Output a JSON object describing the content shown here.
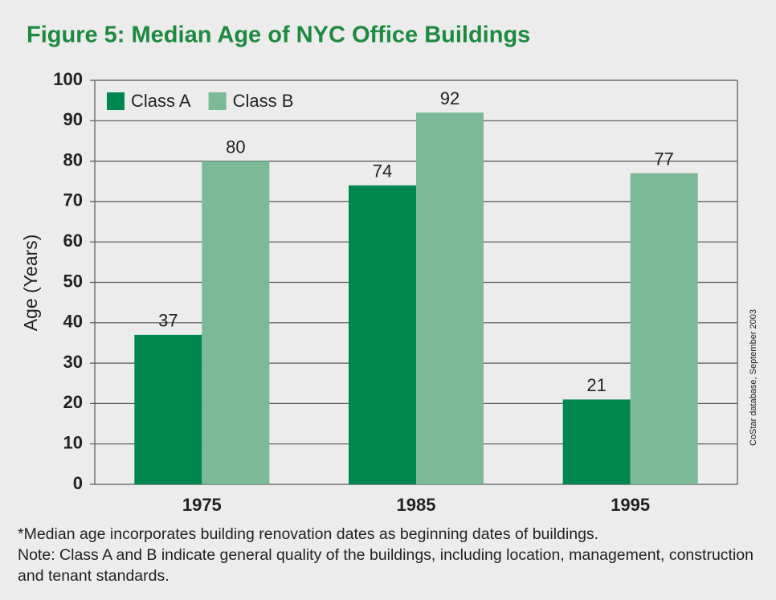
{
  "chart_data": {
    "type": "bar",
    "title": "Figure 5: Median Age of NYC Office Buildings",
    "y_label": "Age (Years)",
    "source": "CoStar database, September 2003",
    "categories": [
      "1975",
      "1985",
      "1995"
    ],
    "series": [
      {
        "name": "Class A",
        "color": "#00874f",
        "values": [
          37,
          74,
          21
        ]
      },
      {
        "name": "Class B",
        "color": "#7bb997",
        "values": [
          80,
          92,
          77
        ]
      }
    ],
    "ylim": [
      0,
      100
    ],
    "yticks": [
      0,
      10,
      20,
      30,
      40,
      50,
      60,
      70,
      80,
      90,
      100
    ],
    "grid": true,
    "legend": "upper left",
    "notes": [
      "*Median age incorporates building renovation dates as beginning dates of buildings.",
      "Note: Class A and B indicate general quality of the buildings, including location, management, construction and tenant standards."
    ]
  }
}
